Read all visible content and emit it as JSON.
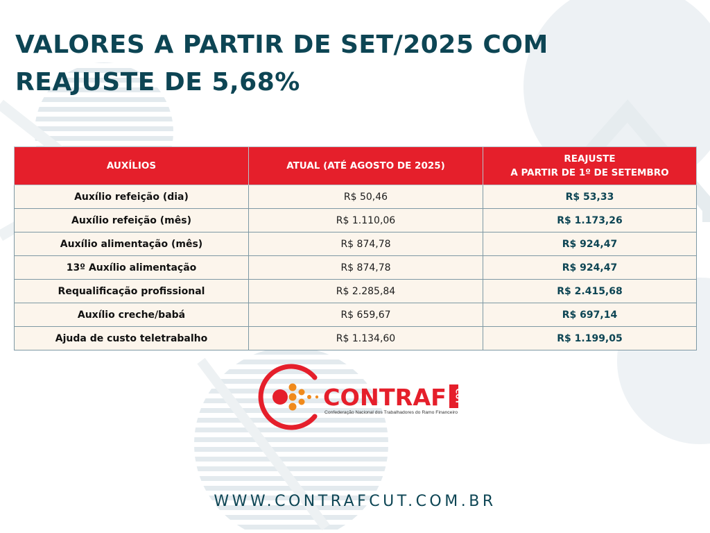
{
  "title": {
    "line1": "VALORES A PARTIR DE SET/2025 COM",
    "line2": "REAJUSTE DE 5,68%"
  },
  "table": {
    "headers": {
      "col1": "AUXÍLIOS",
      "col2": "ATUAL (ATÉ AGOSTO DE 2025)",
      "col3_line1": "REAJUSTE",
      "col3_line2": "A PARTIR DE 1º DE SETEMBRO"
    },
    "rows": [
      {
        "name": "Auxílio refeição (dia)",
        "current": "R$ 50,46",
        "adjusted": "R$ 53,33"
      },
      {
        "name": "Auxílio refeição (mês)",
        "current": "R$ 1.110,06",
        "adjusted": "R$ 1.173,26"
      },
      {
        "name": "Auxílio alimentação (mês)",
        "current": "R$ 874,78",
        "adjusted": "R$ 924,47"
      },
      {
        "name": "13º Auxílio alimentação",
        "current": "R$ 874,78",
        "adjusted": "R$ 924,47"
      },
      {
        "name": "Requalificação profissional",
        "current": "R$ 2.285,84",
        "adjusted": "R$ 2.415,68"
      },
      {
        "name": "Auxílio creche/babá",
        "current": "R$ 659,67",
        "adjusted": "R$ 697,14"
      },
      {
        "name": "Ajuda de custo teletrabalho",
        "current": "R$ 1.134,60",
        "adjusted": "R$ 1.199,05"
      }
    ]
  },
  "logo": {
    "wordmark": "CONTRAF",
    "side_mark": "CUT",
    "tagline": "Confederação Nacional dos Trabalhadores do Ramo Financeiro"
  },
  "footer": {
    "url": "WWW.CONTRAFCUT.COM.BR"
  },
  "colors": {
    "primary": "#0d4554",
    "header_red": "#e51f2b",
    "row_bg": "#fcf5ec",
    "logo_orange": "#f08a1c"
  }
}
